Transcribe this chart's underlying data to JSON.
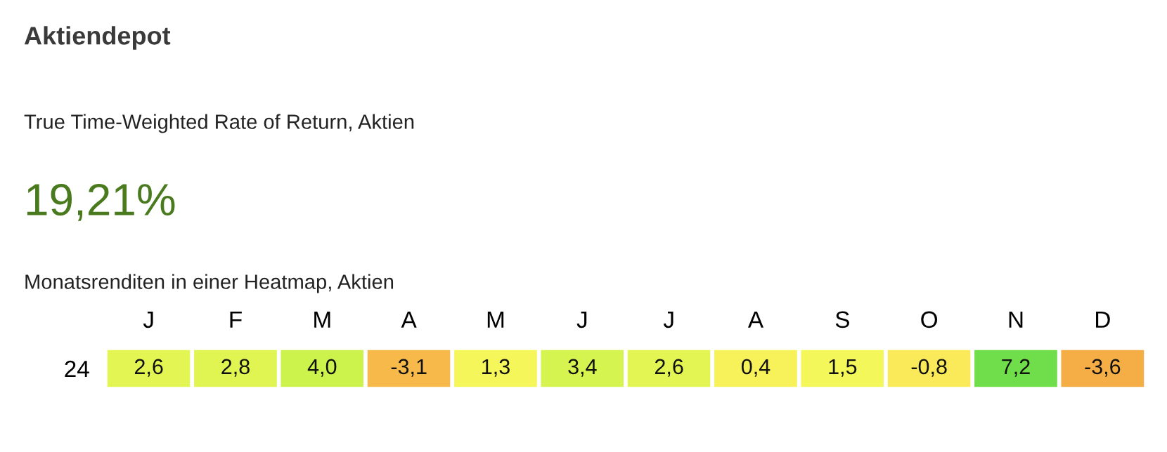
{
  "chart_data": {
    "type": "heatmap",
    "title": "Aktiendepot",
    "subtitle": "True Time-Weighted Rate of Return, Aktien",
    "annotations": [
      "19,21%",
      "Monatsrenditen in einer Heatmap, Aktien"
    ],
    "categories": [
      "J",
      "F",
      "M",
      "A",
      "M",
      "J",
      "J",
      "A",
      "S",
      "O",
      "N",
      "D"
    ],
    "y_categories": [
      "24"
    ],
    "cells": [
      [
        2.6,
        2.8,
        4.0,
        -3.1,
        1.3,
        3.4,
        2.6,
        0.4,
        1.5,
        -0.8,
        7.2,
        -3.6
      ]
    ],
    "cell_labels": [
      [
        "2,6",
        "2,8",
        "4,0",
        "-3,1",
        "1,3",
        "3,4",
        "2,6",
        "0,4",
        "1,5",
        "-0,8",
        "7,2",
        "-3,6"
      ]
    ]
  }
}
